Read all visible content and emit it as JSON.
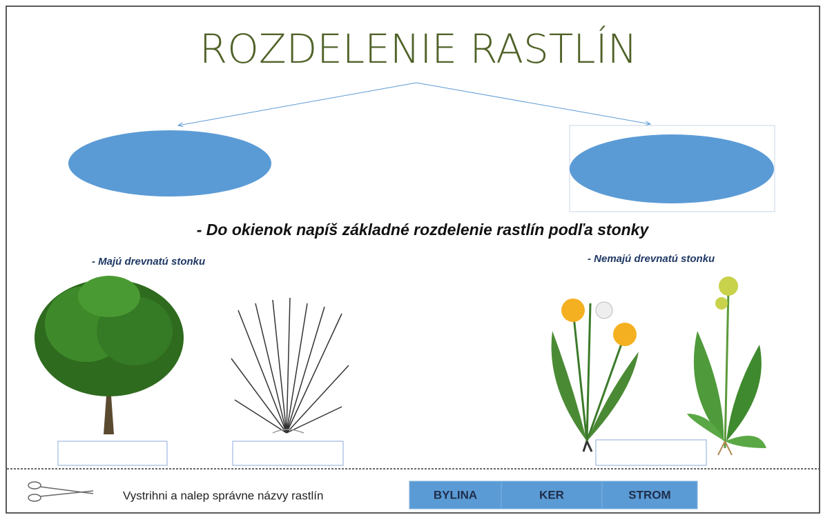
{
  "header": {
    "title": "ROZDELENIE RASTLÍN"
  },
  "instruction": "- Do okienok napíš základné rozdelenie rastlín podľa stonky",
  "groups": [
    {
      "label": "- Majú drevnatú stonku"
    },
    {
      "label": "- Nemajú drevnatú stonku"
    }
  ],
  "footer": {
    "instruction": "Vystrihni a nalep správne názvy rastlín",
    "words": [
      "BYLINA",
      "KER",
      "STROM"
    ]
  }
}
